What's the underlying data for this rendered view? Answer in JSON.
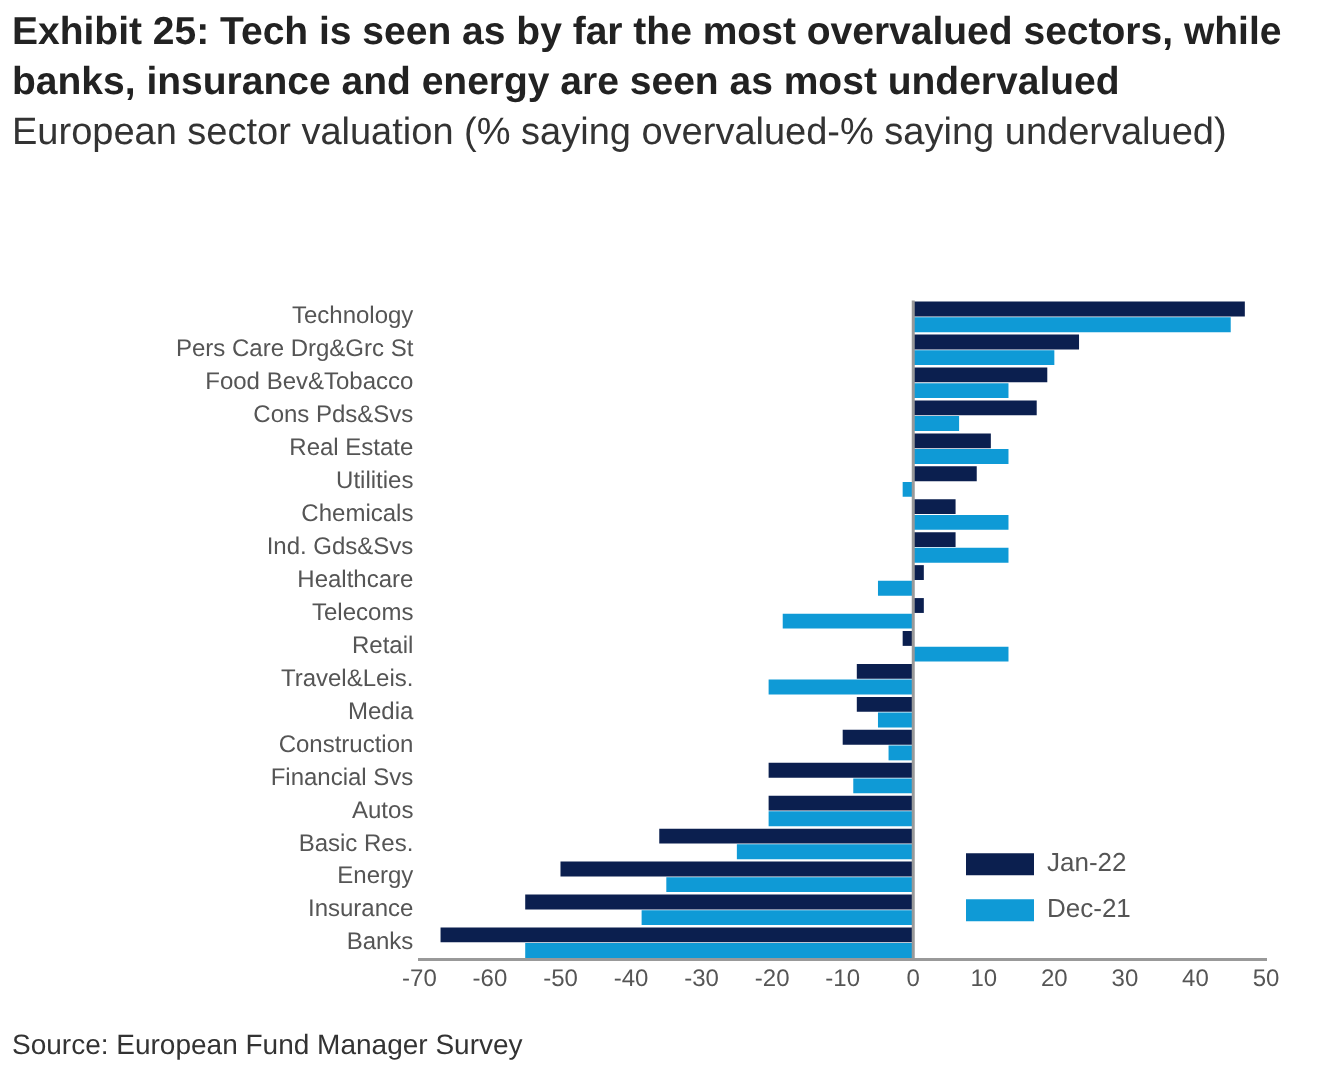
{
  "chart_data": {
    "type": "bar",
    "orientation": "horizontal",
    "title": "Exhibit 25: Tech is seen as by far the most overvalued sectors, while banks, insurance and energy  are seen as most undervalued",
    "subtitle": "European sector valuation (% saying overvalued-% saying undervalued)",
    "categories": [
      "Technology",
      "Pers Care Drg&Grc St",
      "Food Bev&Tobacco",
      "Cons Pds&Svs",
      "Real Estate",
      "Utilities",
      "Chemicals",
      "Ind. Gds&Svs",
      "Healthcare",
      "Telecoms",
      "Retail",
      "Travel&Leis.",
      "Media",
      "Construction",
      "Financial Svs",
      "Autos",
      "Basic Res.",
      "Energy",
      "Insurance",
      "Banks"
    ],
    "series": [
      {
        "name": "Jan-22",
        "color": "#0b1f4f",
        "values": [
          47,
          23.5,
          19,
          17.5,
          11,
          9,
          6,
          6,
          1.5,
          1.5,
          -1.5,
          -8,
          -8,
          -10,
          -20.5,
          -20.5,
          -36,
          -50,
          -55,
          -67
        ]
      },
      {
        "name": "Dec-21",
        "color": "#0f9ad6",
        "values": [
          45,
          20,
          13.5,
          6.5,
          13.5,
          -1.5,
          13.5,
          13.5,
          -5,
          -18.5,
          13.5,
          -20.5,
          -5,
          -3.5,
          -8.5,
          -20.5,
          -25,
          -35,
          -38.5,
          -55
        ]
      }
    ],
    "xlim": [
      -70,
      50
    ],
    "xticks": [
      -70,
      -60,
      -50,
      -40,
      -30,
      -20,
      -10,
      0,
      10,
      20,
      30,
      40,
      50
    ],
    "legend": "bottom right",
    "annotations": [
      "Source: European Fund Manager Survey"
    ]
  }
}
